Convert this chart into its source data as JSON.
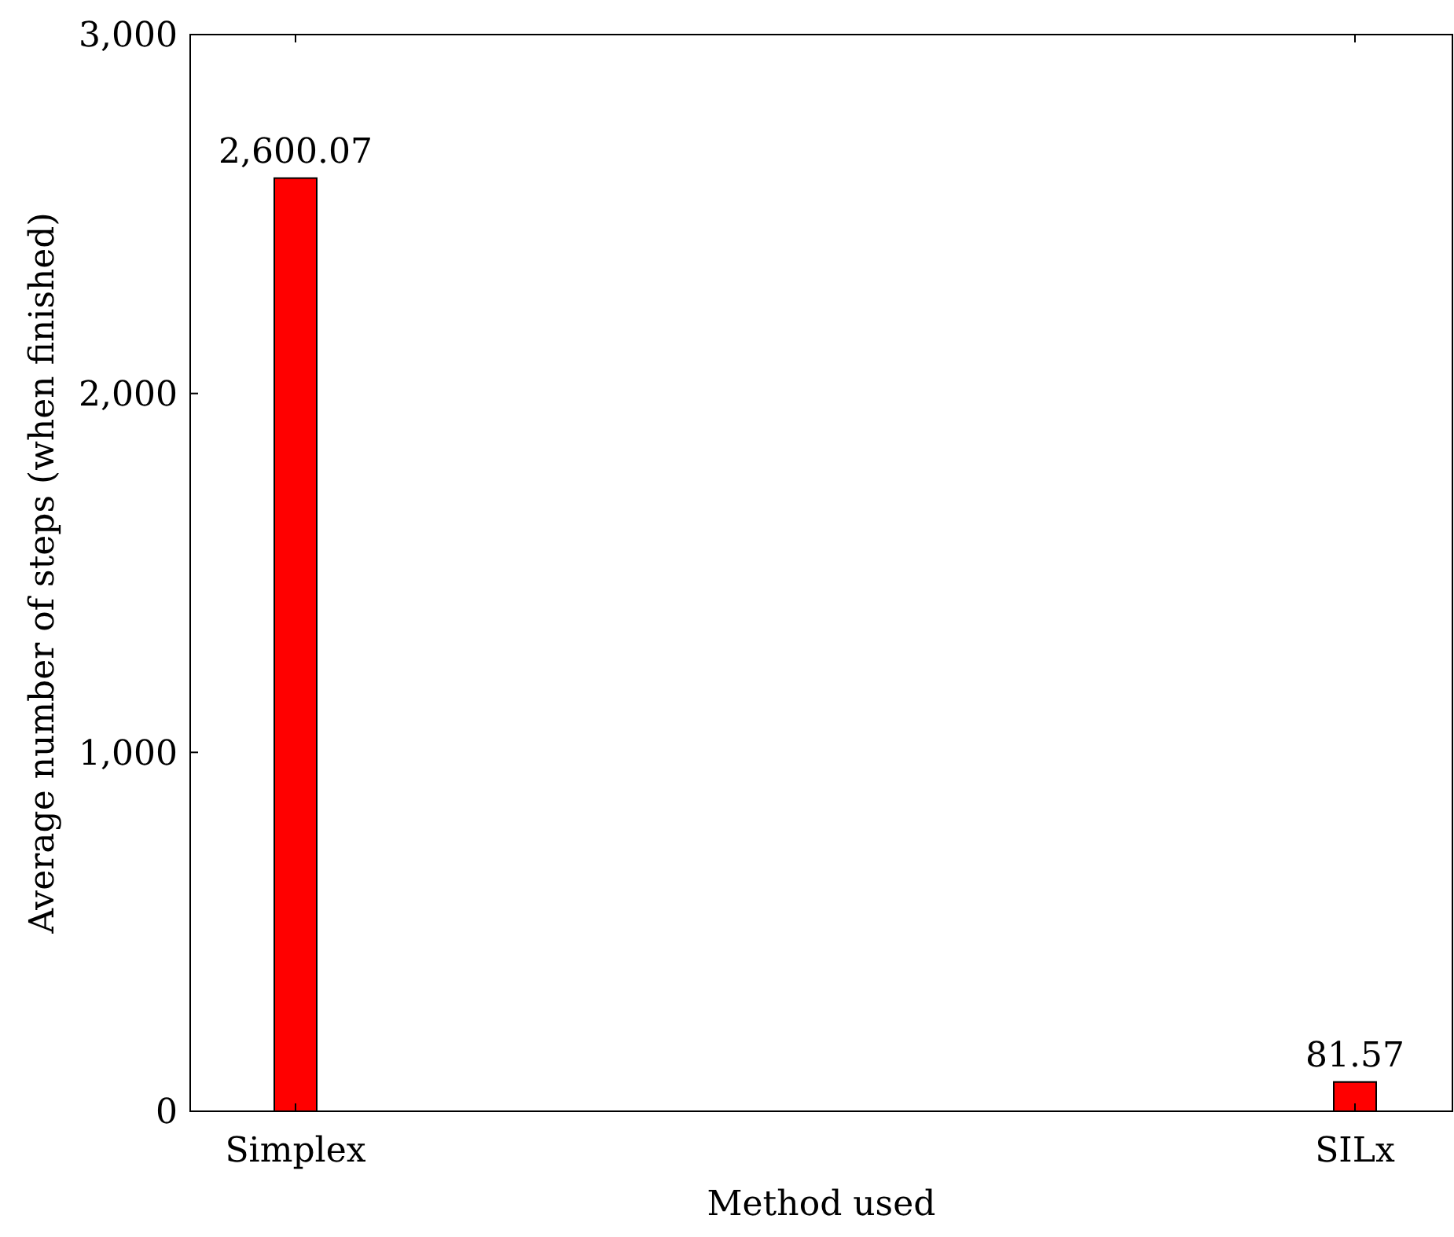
{
  "chart_data": {
    "type": "bar",
    "xlabel": "Method used",
    "ylabel": "Average number of steps (when finished)",
    "categories": [
      "Simplex",
      "SILx"
    ],
    "values": [
      2600.07,
      81.57
    ],
    "value_labels": [
      "2,600.07",
      "81.57"
    ],
    "color": "#ff0000",
    "ylim": [
      0,
      3000
    ],
    "yticks": [
      0,
      {
        "value": 1000,
        "label": "1,000"
      },
      {
        "value": 2000,
        "label": "2,000"
      },
      {
        "value": 3000,
        "label": "3,000"
      }
    ],
    "grid": false
  }
}
